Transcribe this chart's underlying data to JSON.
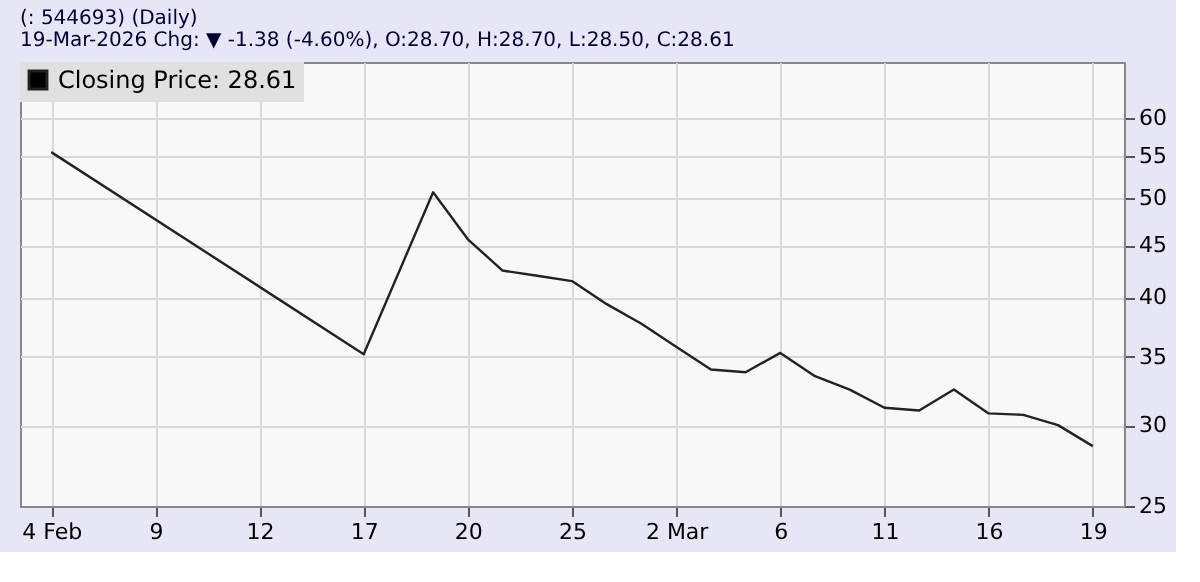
{
  "chart_data": {
    "type": "line",
    "title": "(: 544693) (Daily)",
    "subtitle": "19-Mar-2026 Chg: ▼ -1.38 (-4.60%), O:28.70, H:28.70, L:28.50, C:28.61",
    "categories": [
      "4 Feb",
      null,
      null,
      "9",
      null,
      null,
      "12",
      null,
      null,
      "17",
      null,
      null,
      "20",
      null,
      null,
      "25",
      null,
      null,
      "2 Mar",
      null,
      null,
      "6",
      null,
      null,
      "11",
      null,
      null,
      "16",
      null,
      null,
      "19"
    ],
    "series": [
      {
        "name": "Closing Price: 28.61",
        "color": "#222222",
        "values": [
          55.5,
          null,
          null,
          null,
          null,
          null,
          null,
          null,
          null,
          35.2,
          null,
          50.7,
          45.6,
          42.5,
          42.0,
          41.5,
          39.4,
          37.7,
          35.8,
          34.0,
          33.8,
          35.3,
          33.5,
          32.5,
          31.2,
          31.0,
          32.5,
          30.8,
          30.7,
          30.0,
          28.61
        ]
      }
    ],
    "log": true,
    "ylim": [
      25,
      68
    ],
    "yticks": [
      25,
      30,
      35,
      40,
      45,
      50,
      55,
      60
    ],
    "grid": true,
    "legend": "top left",
    "marker": "none",
    "line_style": "solid"
  }
}
